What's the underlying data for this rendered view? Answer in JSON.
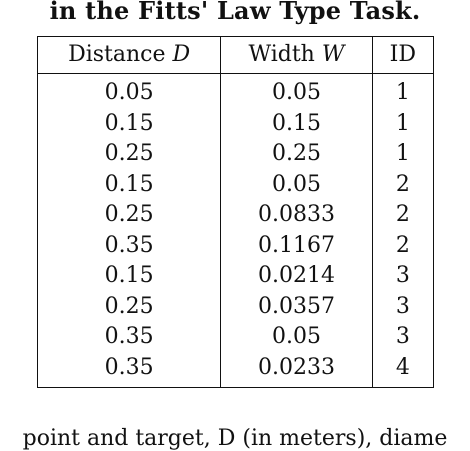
{
  "caption": "in the Fitts' Law Type Task.",
  "table": {
    "headers": [
      {
        "text": "Distance ",
        "var": "D"
      },
      {
        "text": "Width ",
        "var": "W"
      },
      {
        "text": "ID",
        "var": ""
      }
    ],
    "rows": [
      [
        "0.05",
        "0.05",
        "1"
      ],
      [
        "0.15",
        "0.15",
        "1"
      ],
      [
        "0.25",
        "0.25",
        "1"
      ],
      [
        "0.15",
        "0.05",
        "2"
      ],
      [
        "0.25",
        "0.0833",
        "2"
      ],
      [
        "0.35",
        "0.1167",
        "2"
      ],
      [
        "0.15",
        "0.0214",
        "3"
      ],
      [
        "0.25",
        "0.0357",
        "3"
      ],
      [
        "0.35",
        "0.05",
        "3"
      ],
      [
        "0.35",
        "0.0233",
        "4"
      ]
    ]
  },
  "footer": "point and target, D (in meters), diame"
}
